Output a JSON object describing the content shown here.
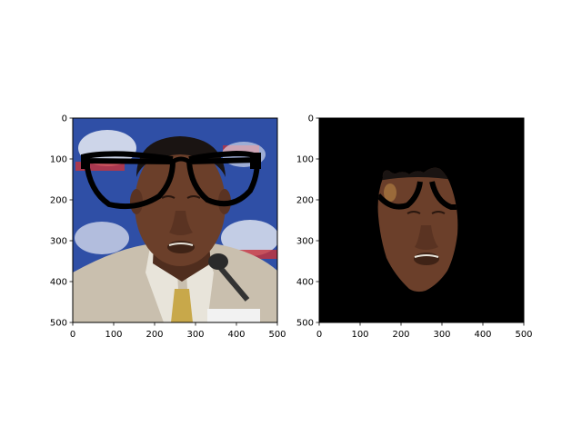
{
  "chart_data": [
    {
      "type": "image",
      "image_description_name": "face-with-drawn-glasses",
      "x_ticks": [
        0,
        100,
        200,
        300,
        400,
        500
      ],
      "y_ticks": [
        0,
        100,
        200,
        300,
        400,
        500
      ],
      "xlim": [
        0,
        500
      ],
      "ylim": [
        500,
        0
      ],
      "grid": false
    },
    {
      "type": "image",
      "image_description_name": "masked-face-segment",
      "x_ticks": [
        0,
        100,
        200,
        300,
        400,
        500
      ],
      "y_ticks": [
        0,
        100,
        200,
        300,
        400,
        500
      ],
      "xlim": [
        0,
        500
      ],
      "ylim": [
        500,
        0
      ],
      "grid": false
    }
  ],
  "colors": {
    "background_blue": "#2f4fa6",
    "banner_white": "#e9ecf5",
    "banner_red": "#c8323a",
    "skin": "#6b3f2a",
    "skin_dark": "#3f2316",
    "hair": "#1a1412",
    "suit": "#c9bfae",
    "shirt": "#e8e4da",
    "tie": "#c8a84a",
    "glasses": "#000000",
    "mask_bg": "#000000"
  }
}
